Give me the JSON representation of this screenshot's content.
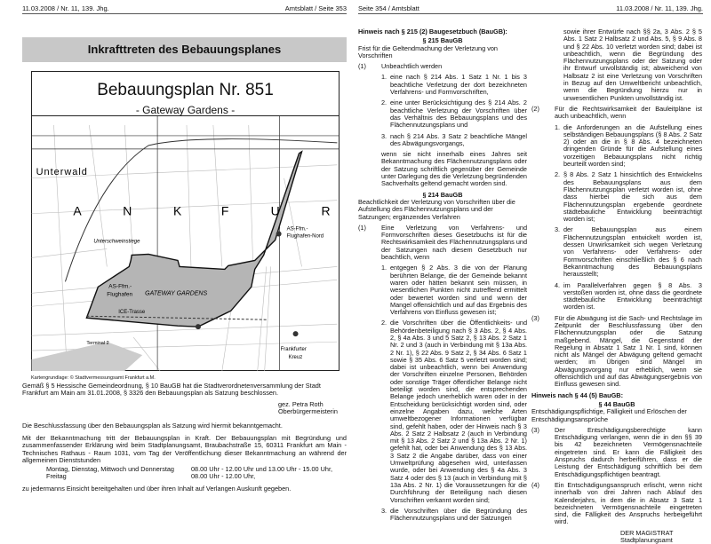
{
  "left_page": {
    "header_left": "11.03.2008 / Nr. 11, 139. Jhg.",
    "header_right": "Amtsblatt / Seite 353",
    "title": "Inkrafttreten des Bebauungsplanes",
    "plan_title": "Bebauungsplan Nr. 851",
    "plan_subtitle": "- Gateway Gardens -",
    "map_labels": {
      "unterwald": "Unterwald",
      "letters": [
        "A",
        "N",
        "K",
        "F",
        "U",
        "R"
      ],
      "unterschweinstiege": "Unterschweinstiege",
      "as_nord_1": "AS-Ffm.-",
      "as_nord_2": "Flughafen-Nord",
      "as_1": "AS-Ffm.-",
      "as_2": "Flughafen",
      "gateway": "GATEWAY GARDENS",
      "ice": "ICE-Trasse",
      "terminal": "Terminal 2",
      "kreuz_1": "Frankfurter",
      "kreuz_2": "Kreuz"
    },
    "map_caption": "Kartengrundlage: © Stadtvermessungsamt Frankfurt a.M.",
    "p1": "Gemäß § 5 Hessische Gemeindeordnung, § 10 BauGB hat die Stadtverordnetenversammlung der Stadt Frankfurt am Main am 31.01.2008, § 3326 den Bebauungsplan als Satzung beschlossen.",
    "sig_1": "gez. Petra Roth",
    "sig_2": "Oberbürgermeisterin",
    "p2": "Die Beschlussfassung über den Bebauungsplan als Satzung wird hiermit bekanntgemacht.",
    "p3": "Mit der Bekanntmachung tritt der Bebauungsplan in Kraft. Der Bebauungsplan mit Begründung und zusammenfassender Erklärung wird beim Stadtplanungsamt, Braubachstraße 15, 60311 Frankfurt am Main - Technisches Rathaus - Raum 1031, vom Tag der Veröffentlichung dieser Bekanntmachung an während der allgemeinen Dienststunden",
    "hours": [
      {
        "days": "Montag, Dienstag, Mittwoch und Donnerstag",
        "time": "08.00 Uhr - 12.00 Uhr und 13.00 Uhr - 15.00 Uhr,"
      },
      {
        "days": "Freitag",
        "time": "08.00 Uhr - 12.00 Uhr,"
      }
    ],
    "p4": "zu jedermanns Einsicht bereitgehalten und über ihren Inhalt auf Verlangen Auskunft gegeben."
  },
  "right_page": {
    "header_left": "Seite 354 / Amtsblatt",
    "header_right": "11.03.2008 / Nr. 11, 139. Jhg.",
    "h215": "Hinweis nach § 215 (2) Baugesetzbuch (BauGB):",
    "s215": {
      "title": "§ 215 BauGB",
      "sub": "Frist für die Geltendmachung der Verletzung von Vorschriften",
      "abs1_n": "(1)",
      "abs1": "Unbeachtlich werden",
      "items": [
        "eine nach § 214 Abs. 1 Satz 1 Nr. 1 bis 3 beachtliche Verletzung der dort bezeichneten Verfahrens- und Formvorschriften,",
        "eine unter Berücksichtigung des § 214 Abs. 2 beachtliche Verletzung der Vorschriften über das Verhältnis des Bebauungsplans und des Flächennutzungsplans und",
        "nach § 214 Abs. 3 Satz 2 beachtliche Mängel des Abwägungsvorgangs,"
      ],
      "after": "wenn sie nicht innerhalb eines Jahres seit Bekanntmachung des Flächennutzungsplans oder der Satzung schriftlich gegenüber der Gemeinde unter Darlegung des die Verletzung begründenden Sachverhalts geltend gemacht worden sind."
    },
    "s214": {
      "title": "§ 214 BauGB",
      "sub": "Beachtlichkeit der Verletzung von Vorschriften über die Aufstellung des Flächennutzungsplans und der Satzungen; ergänzendes Verfahren",
      "abs1_n": "(1)",
      "abs1": "Eine Verletzung von Verfahrens- und Formvorschriften dieses Gesetzbuchs ist für die Rechtswirksamkeit des Flächennutzungsplans und der Satzungen nach diesem Gesetzbuch nur beachtlich, wenn",
      "items": [
        "entgegen § 2 Abs. 3 die von der Planung berührten Belange, die der Gemeinde bekannt waren oder hätten bekannt sein müssen, in wesentlichen Punkten nicht zutreffend ermittelt oder bewertet worden sind und wenn der Mangel offensichtlich und auf das Ergebnis des Verfahrens von Einfluss gewesen ist;",
        "die Vorschriften über die Öffentlichkeits- und Behördenbeteiligung nach § 3 Abs. 2, § 4 Abs. 2, § 4a Abs. 3 und 5 Satz 2, § 13 Abs. 2 Satz 1 Nr. 2 und 3 (auch in Verbindung mit § 13a Abs. 2 Nr. 1), § 22 Abs. 9 Satz 2, § 34 Abs. 6 Satz 1 sowie § 35 Abs. 6 Satz 5 verletzt worden sind; dabei ist unbeachtlich, wenn bei Anwendung der Vorschriften einzelne Personen, Behörden oder sonstige Träger öffentlicher Belange nicht beteiligt worden sind, die entsprechenden Belange jedoch unerheblich waren oder in der Entscheidung berücksichtigt worden sind, oder einzelne Angaben dazu, welche Arten umweltbezogener Informationen verfügbar sind, gefehlt haben, oder der Hinweis nach § 3 Abs. 2 Satz 2 Halbsatz 2 (auch in Verbindung mit § 13 Abs. 2 Satz 2 und § 13a Abs. 2 Nr. 1) gefehlt hat, oder bei Anwendung des § 13 Abs. 3 Satz 2 die Angabe darüber, dass von einer Umweltprüfung abgesehen wird, unterlassen wurde, oder bei Anwendung des § 4a Abs. 3 Satz 4 oder des § 13 (auch in Verbindung mit § 13a Abs. 2 Nr. 1) die Voraussetzungen für die Durchführung der Beteiligung nach diesen Vorschriften verkannt worden sind;",
        "die Vorschriften über die Begründung des Flächennutzungsplans und der Satzungen"
      ],
      "item3_cont": "sowie ihrer Entwürfe nach §§ 2a, 3 Abs. 2 § 5 Abs. 1 Satz 2 Halbsatz 2 und Abs. 5, § 9 Abs. 8 und § 22 Abs. 10 verletzt worden sind; dabei ist unbeachtlich, wenn die Begründung des Flächennutzungsplans oder der Satzung oder ihr Entwurf unvollständig ist; abweichend von Halbsatz 2 ist eine Verletzung von Vorschriften in Bezug auf den Umweltbericht unbeachtlich, wenn die Begründung hierzu nur in unwesentlichen Punkten unvollständig ist.",
      "abs2_n": "(2)",
      "abs2": "Für die Rechtswirksamkeit der Bauleitpläne ist auch unbeachtlich, wenn",
      "abs2_items": [
        "die Anforderungen an die Aufstellung eines selbständigen Bebauungsplans (§ 8 Abs. 2 Satz 2) oder an die in § 8 Abs. 4 bezeichneten dringenden Gründe für die Aufstellung eines vorzeitigen Bebauungsplans nicht richtig beurteilt worden sind;",
        "§ 8 Abs. 2 Satz 1 hinsichtlich des Entwickelns des Bebauungsplans aus dem Flächennutzungsplan verletzt worden ist, ohne dass hierbei die sich aus dem Flächennutzungsplan ergebende geordnete städtebauliche Entwicklung beeinträchtigt worden ist;",
        "der Bebauungsplan aus einem Flächennutzungsplan entwickelt worden ist, dessen Unwirksamkeit sich wegen Verletzung von Verfahrens- oder Verfahrens- oder Formvorschriften einschließlich des § 6 nach Bekanntmachung des Bebauungsplans herausstellt;",
        "im Parallelverfahren gegen § 8 Abs. 3 verstoßen worden ist, ohne dass die geordnete städtebauliche Entwicklung beeinträchtigt worden ist."
      ],
      "abs3_n": "(3)",
      "abs3": "Für die Abwägung ist die Sach- und Rechtslage im Zeitpunkt der Beschlussfassung über den Flächennutzungsplan oder die Satzung maßgebend. Mängel, die Gegenstand der Regelung in Absatz 1 Satz 1 Nr. 1 sind, können nicht als Mängel der Abwägung geltend gemacht werden; im Übrigen sind Mängel im Abwägungsvorgang nur erheblich, wenn sie offensichtlich und auf das Abwägungsergebnis von Einfluss gewesen sind."
    },
    "h44": "Hinweis nach § 44 (5) BauGB:",
    "s44": {
      "title": "§ 44 BauGB",
      "sub": "Entschädigungspflichtige, Fälligkeit und Erlöschen der Entschädigungsansprüche",
      "abs3_n": "(3)",
      "abs3": "Der Entschädigungsberechtigte kann Entschädigung verlangen, wenn die in den §§ 39 bis 42 bezeichneten Vermögensnachteile eingetreten sind. Er kann die Fälligkeit des Anspruchs dadurch herbeiführen, dass er die Leistung der Entschädigung schriftlich bei dem Entschädigungspflichtigen beantragt.",
      "abs4_n": "(4)",
      "abs4": "Ein Entschädigungsanspruch erlischt, wenn nicht innerhalb von drei Jahren nach Ablauf des Kalenderjahrs, in dem die in Absatz 3 Satz 1 bezeichneten Vermögensnachteile eingetreten sind, die Fälligkeit des Anspruchs herbeigeführt wird."
    },
    "sig_1": "DER MAGISTRAT",
    "sig_2": "Stadtplanungsamt"
  }
}
